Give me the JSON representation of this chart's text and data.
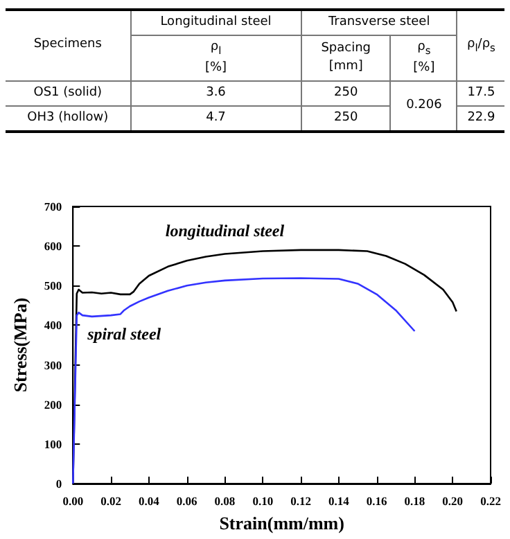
{
  "chart_data": {
    "type": "line",
    "xlabel": "Strain(mm/mm)",
    "ylabel": "Stress(MPa)",
    "annotations": [
      "Specimens",
      "Longitudinal steel",
      "Transverse steel",
      "ρ$_{l}$/ρ$_{s}$",
      "ρ$_{l}$",
      "[%]",
      "Spacing",
      "[mm]",
      "ρ$_{s}$",
      "[%]",
      "OS1 (solid)",
      "3.6",
      "250",
      "0.206",
      "17.5",
      "OH3 (hollow)",
      "4.7",
      "250",
      "22.9"
    ],
    "xlim": [
      0,
      0.22
    ],
    "xticks": [
      {
        "value": 0,
        "label": "0.00"
      },
      {
        "value": 0.02,
        "label": "0.02"
      },
      {
        "value": 0.04,
        "label": "0.04"
      },
      {
        "value": 0.06,
        "label": "0.06"
      },
      {
        "value": 0.08,
        "label": "0.08"
      },
      {
        "value": 0.1,
        "label": "0.10"
      },
      {
        "value": 0.12,
        "label": "0.12"
      },
      {
        "value": 0.14,
        "label": "0.14"
      },
      {
        "value": 0.16,
        "label": "0.16"
      },
      {
        "value": 0.18,
        "label": "0.18"
      },
      {
        "value": 0.2,
        "label": "0.20"
      },
      {
        "value": 0.22,
        "label": "0.22"
      }
    ],
    "ylim": [
      0,
      700
    ],
    "yticks": [
      0,
      100,
      200,
      300,
      400,
      500,
      600,
      700
    ],
    "grid": false,
    "legend": false,
    "marker": "none",
    "line_style": "solid",
    "series": [
      {
        "name": "longitudinal steel",
        "color": "#000000",
        "x": [
          0,
          0.002,
          0.003,
          0.005,
          0.01,
          0.015,
          0.02,
          0.025,
          0.03,
          0.032,
          0.035,
          0.04,
          0.05,
          0.06,
          0.07,
          0.08,
          0.1,
          0.12,
          0.14,
          0.155,
          0.165,
          0.175,
          0.185,
          0.195,
          0.2,
          0.202
        ],
        "values": [
          0,
          480,
          490,
          482,
          483,
          480,
          482,
          478,
          478,
          485,
          505,
          525,
          548,
          563,
          573,
          580,
          587,
          590,
          590,
          587,
          575,
          555,
          527,
          490,
          458,
          435
        ]
      },
      {
        "name": "spiral steel",
        "color": "#3333ff",
        "x": [
          0,
          0.002,
          0.003,
          0.005,
          0.01,
          0.02,
          0.025,
          0.027,
          0.03,
          0.035,
          0.04,
          0.05,
          0.06,
          0.07,
          0.08,
          0.1,
          0.12,
          0.14,
          0.15,
          0.16,
          0.17,
          0.18
        ],
        "values": [
          0,
          425,
          432,
          425,
          422,
          425,
          428,
          438,
          448,
          460,
          470,
          487,
          500,
          508,
          513,
          518,
          519,
          517,
          505,
          478,
          438,
          385
        ]
      }
    ]
  }
}
